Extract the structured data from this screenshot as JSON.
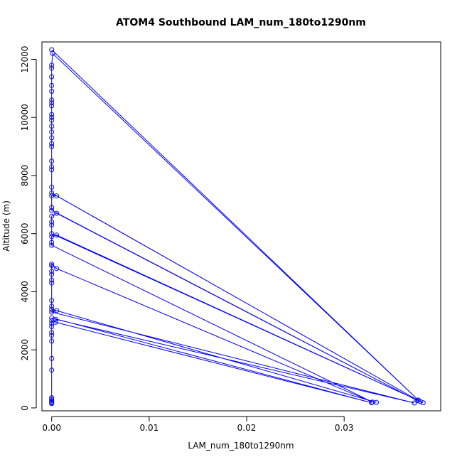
{
  "chart_data": {
    "type": "line",
    "title": "ATOM4 Southbound LAM_num_180to1290nm",
    "xlabel": "LAM_num_180to1290nm",
    "ylabel": "Altitude (m)",
    "xlim": [
      -0.001,
      0.0399
    ],
    "ylim": [
      -100,
      12600
    ],
    "x_ticks": [
      0,
      0.01,
      0.02,
      0.03
    ],
    "x_tick_labels": [
      "0.00",
      "0.01",
      "0.02",
      "0.03"
    ],
    "y_ticks": [
      0,
      2000,
      4000,
      6000,
      8000,
      10000,
      12000
    ],
    "y_tick_labels": [
      "0",
      "2000",
      "4000",
      "6000",
      "8000",
      "10000",
      "12000"
    ],
    "grid": false,
    "color": "#0000ff",
    "marker": "open-circle",
    "series": [
      {
        "points": [
          [
            0,
            150
          ],
          [
            0,
            180
          ],
          [
            0,
            200
          ],
          [
            0,
            250
          ],
          [
            0,
            300
          ],
          [
            0,
            350
          ],
          [
            0,
            1300
          ],
          [
            0,
            1700
          ],
          [
            0,
            2300
          ],
          [
            0,
            2500
          ],
          [
            0,
            2600
          ],
          [
            0,
            2800
          ],
          [
            0,
            2900
          ],
          [
            0,
            3000
          ],
          [
            0.0004,
            2950
          ],
          [
            0.0328,
            180
          ],
          [
            0,
            3100
          ],
          [
            0.0004,
            3050
          ],
          [
            0.0372,
            170
          ],
          [
            0,
            3300
          ],
          [
            0.0005,
            3350
          ],
          [
            0.0333,
            190
          ],
          [
            0,
            3400
          ],
          [
            0,
            3500
          ],
          [
            0,
            3700
          ],
          [
            0,
            4300
          ],
          [
            0,
            4400
          ],
          [
            0,
            4600
          ],
          [
            0,
            4700
          ],
          [
            0,
            4900
          ],
          [
            0,
            4950
          ],
          [
            0.0005,
            4800
          ],
          [
            0.0329,
            200
          ],
          [
            0,
            5600
          ],
          [
            0,
            5700
          ],
          [
            0,
            5900
          ],
          [
            0.0005,
            5950
          ],
          [
            0.0381,
            180
          ],
          [
            0,
            6000
          ],
          [
            0,
            6300
          ],
          [
            0,
            6400
          ],
          [
            0,
            6600
          ],
          [
            0.0005,
            6700
          ],
          [
            0.0375,
            250
          ],
          [
            0,
            6800
          ],
          [
            0,
            6900
          ],
          [
            0,
            7300
          ],
          [
            0.0005,
            7300
          ],
          [
            0.0378,
            220
          ],
          [
            0,
            7400
          ],
          [
            0,
            7600
          ],
          [
            0,
            8200
          ],
          [
            0,
            8300
          ],
          [
            0,
            8500
          ],
          [
            0,
            9000
          ],
          [
            0,
            9100
          ],
          [
            0,
            9300
          ],
          [
            0,
            9500
          ],
          [
            0,
            9700
          ],
          [
            0,
            9900
          ],
          [
            0,
            10000
          ],
          [
            0,
            10100
          ],
          [
            0,
            10400
          ],
          [
            0,
            10500
          ],
          [
            0,
            10600
          ],
          [
            0,
            10900
          ],
          [
            0,
            11100
          ],
          [
            0,
            11400
          ],
          [
            0,
            11700
          ],
          [
            0,
            11800
          ],
          [
            0.0001,
            12200
          ],
          [
            0.0376,
            270
          ],
          [
            0,
            12330
          ]
        ]
      }
    ]
  }
}
